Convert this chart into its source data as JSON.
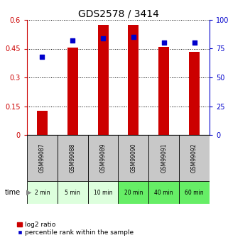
{
  "title": "GDS2578 / 3414",
  "categories": [
    "GSM99087",
    "GSM99088",
    "GSM99089",
    "GSM99090",
    "GSM99091",
    "GSM99092"
  ],
  "time_labels": [
    "2 min",
    "5 min",
    "10 min",
    "20 min",
    "40 min",
    "60 min"
  ],
  "log2_ratio": [
    0.125,
    0.455,
    0.575,
    0.575,
    0.46,
    0.435
  ],
  "percentile_rank": [
    68,
    82,
    84,
    85,
    80,
    80
  ],
  "bar_color": "#cc0000",
  "dot_color": "#0000cc",
  "left_yticks": [
    0,
    0.15,
    0.3,
    0.45,
    0.6
  ],
  "right_ytick_vals": [
    0,
    25,
    50,
    75,
    100
  ],
  "right_ytick_labels": [
    "0",
    "25",
    "50",
    "75",
    "100%"
  ],
  "ylim_left": [
    0,
    0.6
  ],
  "ylim_right": [
    0,
    100
  ],
  "legend_log2": "log2 ratio",
  "legend_pct": "percentile rank within the sample",
  "gsm_bg_color": "#c8c8c8",
  "time_bg_colors": [
    "#ddffdd",
    "#ddffdd",
    "#ddffdd",
    "#66ee66",
    "#66ee66",
    "#66ee66"
  ],
  "left_axis_color": "#cc0000",
  "right_axis_color": "#0000cc",
  "title_fontsize": 10,
  "tick_fontsize": 7,
  "label_fontsize": 5.5,
  "time_arrow_color": "#888888"
}
